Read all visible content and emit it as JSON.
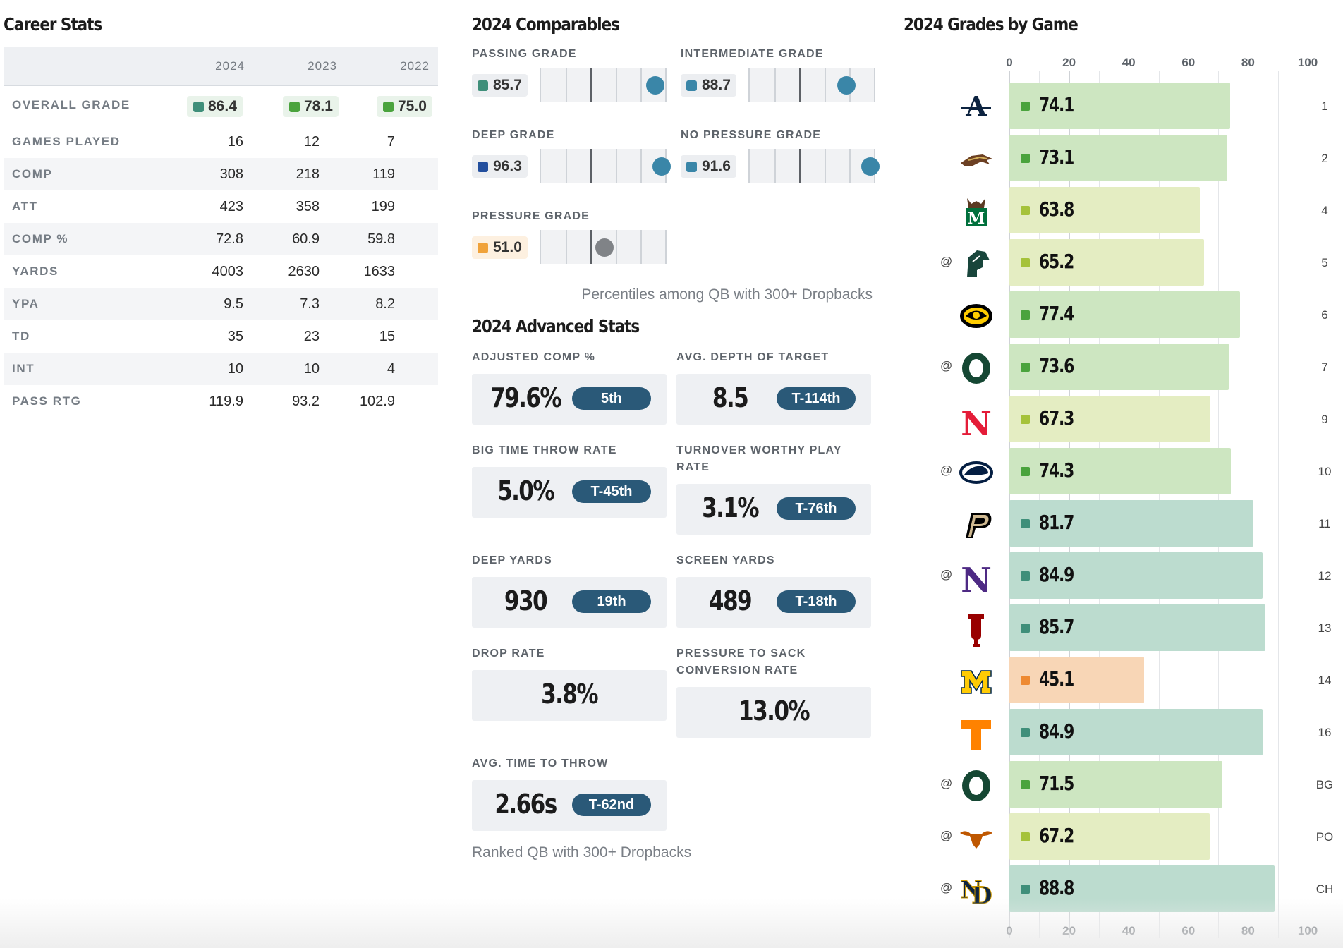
{
  "career": {
    "title": "Career Stats",
    "years": [
      "2024",
      "2023",
      "2022"
    ],
    "overall": {
      "label": "OVERALL GRADE",
      "values": [
        "86.4",
        "78.1",
        "75.0"
      ],
      "colors": [
        "#3f8f7a",
        "#4aa33d",
        "#4aa33d"
      ]
    },
    "rows": [
      {
        "label": "GAMES PLAYED",
        "values": [
          "16",
          "12",
          "7"
        ]
      },
      {
        "label": "COMP",
        "values": [
          "308",
          "218",
          "119"
        ]
      },
      {
        "label": "ATT",
        "values": [
          "423",
          "358",
          "199"
        ]
      },
      {
        "label": "COMP %",
        "values": [
          "72.8",
          "60.9",
          "59.8"
        ]
      },
      {
        "label": "YARDS",
        "values": [
          "4003",
          "2630",
          "1633"
        ]
      },
      {
        "label": "YPA",
        "values": [
          "9.5",
          "7.3",
          "8.2"
        ]
      },
      {
        "label": "TD",
        "values": [
          "35",
          "23",
          "15"
        ]
      },
      {
        "label": "INT",
        "values": [
          "10",
          "10",
          "4"
        ]
      },
      {
        "label": "PASS RTG",
        "values": [
          "119.9",
          "93.2",
          "102.9"
        ]
      }
    ]
  },
  "comparables": {
    "title": "2024 Comparables",
    "items": [
      {
        "label": "PASSING GRADE",
        "grade": "85.7",
        "grade_color": "#3f8f7a",
        "percentile": 0.92,
        "dot_color": "#3a86a8"
      },
      {
        "label": "INTERMEDIATE GRADE",
        "grade": "88.7",
        "grade_color": "#3a86a8",
        "percentile": 0.78,
        "dot_color": "#3a86a8"
      },
      {
        "label": "DEEP GRADE",
        "grade": "96.3",
        "grade_color": "#234f9e",
        "percentile": 0.97,
        "dot_color": "#3a86a8"
      },
      {
        "label": "NO PRESSURE GRADE",
        "grade": "91.6",
        "grade_color": "#3a86a8",
        "percentile": 0.97,
        "dot_color": "#3a86a8"
      },
      {
        "label": "PRESSURE GRADE",
        "grade": "51.0",
        "grade_color": "#f0a23a",
        "grade_bg": "#fdf0e0",
        "percentile": 0.51,
        "dot_color": "#808387"
      }
    ],
    "note": "Percentiles among QB with 300+ Dropbacks"
  },
  "advanced": {
    "title": "2024 Advanced Stats",
    "items": [
      {
        "label": "ADJUSTED COMP %",
        "value": "79.6%",
        "rank": "5th"
      },
      {
        "label": "AVG. DEPTH OF TARGET",
        "value": "8.5",
        "rank": "T-114th"
      },
      {
        "label": "BIG TIME THROW RATE",
        "value": "5.0%",
        "rank": "T-45th"
      },
      {
        "label": "TURNOVER WORTHY PLAY",
        "label2": "RATE",
        "value": "3.1%",
        "rank": "T-76th"
      },
      {
        "label": "DEEP YARDS",
        "value": "930",
        "rank": "19th"
      },
      {
        "label": "SCREEN YARDS",
        "value": "489",
        "rank": "T-18th"
      },
      {
        "label": "DROP RATE",
        "value": "3.8%",
        "rank": ""
      },
      {
        "label": "PRESSURE TO SACK",
        "label2": "CONVERSION RATE",
        "value": "13.0%",
        "rank": ""
      },
      {
        "label": "AVG. TIME TO THROW",
        "value": "2.66s",
        "rank": "T-62nd"
      }
    ],
    "note": "Ranked QB with 300+ Dropbacks"
  },
  "chart_data": {
    "type": "bar",
    "title": "2024 Grades by Game",
    "xlim": [
      0,
      100
    ],
    "ticks": [
      "0",
      "20",
      "40",
      "60",
      "80",
      "100"
    ],
    "games": [
      {
        "opp": "akron-logo",
        "at": "",
        "grade": 74.1,
        "week": "1"
      },
      {
        "opp": "western-michigan-logo",
        "at": "",
        "grade": 73.1,
        "week": "2"
      },
      {
        "opp": "marshall-logo",
        "at": "",
        "grade": 63.8,
        "week": "4"
      },
      {
        "opp": "michigan-state-logo",
        "at": "@",
        "grade": 65.2,
        "week": "5"
      },
      {
        "opp": "iowa-logo",
        "at": "",
        "grade": 77.4,
        "week": "6"
      },
      {
        "opp": "oregon-logo",
        "at": "@",
        "grade": 73.6,
        "week": "7"
      },
      {
        "opp": "nebraska-logo",
        "at": "",
        "grade": 67.3,
        "week": "9"
      },
      {
        "opp": "penn-state-logo",
        "at": "@",
        "grade": 74.3,
        "week": "10"
      },
      {
        "opp": "purdue-logo",
        "at": "",
        "grade": 81.7,
        "week": "11"
      },
      {
        "opp": "northwestern-logo",
        "at": "@",
        "grade": 84.9,
        "week": "12"
      },
      {
        "opp": "indiana-logo",
        "at": "",
        "grade": 85.7,
        "week": "13"
      },
      {
        "opp": "michigan-logo",
        "at": "",
        "grade": 45.1,
        "week": "14"
      },
      {
        "opp": "tennessee-logo",
        "at": "",
        "grade": 84.9,
        "week": "16"
      },
      {
        "opp": "oregon-logo",
        "at": "@",
        "grade": 71.5,
        "week": "BG"
      },
      {
        "opp": "texas-logo",
        "at": "@",
        "grade": 67.2,
        "week": "PO"
      },
      {
        "opp": "notre-dame-logo",
        "at": "@",
        "grade": 88.8,
        "week": "CH"
      }
    ]
  }
}
